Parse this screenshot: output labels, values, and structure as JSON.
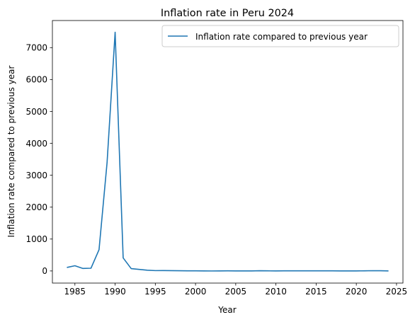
{
  "chart_data": {
    "type": "line",
    "title": "Inflation rate in Peru 2024",
    "xlabel": "Year",
    "ylabel": "Inflation rate compared to previous year",
    "xlim": [
      1982.2,
      2025.8
    ],
    "ylim": [
      -380,
      7850
    ],
    "xticks": [
      1985,
      1990,
      1995,
      2000,
      2005,
      2010,
      2015,
      2020,
      2025
    ],
    "yticks": [
      0,
      1000,
      2000,
      3000,
      4000,
      5000,
      6000,
      7000
    ],
    "grid": false,
    "legend_position": "top-right",
    "series": [
      {
        "name": "Inflation rate compared to previous year",
        "color": "#1f77b4",
        "x": [
          1984,
          1985,
          1986,
          1987,
          1988,
          1989,
          1990,
          1991,
          1992,
          1993,
          1994,
          1995,
          1996,
          1997,
          1998,
          1999,
          2000,
          2001,
          2002,
          2003,
          2004,
          2005,
          2006,
          2007,
          2008,
          2009,
          2010,
          2011,
          2012,
          2013,
          2014,
          2015,
          2016,
          2017,
          2018,
          2019,
          2020,
          2021,
          2022,
          2023,
          2024
        ],
        "y": [
          110,
          163,
          78,
          86,
          667,
          3399,
          7482,
          409,
          73,
          49,
          24,
          11,
          12,
          9,
          7,
          3,
          4,
          2,
          0,
          2,
          4,
          2,
          2,
          2,
          6,
          3,
          2,
          3,
          4,
          3,
          3,
          4,
          4,
          3,
          1,
          2,
          2,
          4,
          8,
          6,
          2
        ]
      }
    ]
  }
}
